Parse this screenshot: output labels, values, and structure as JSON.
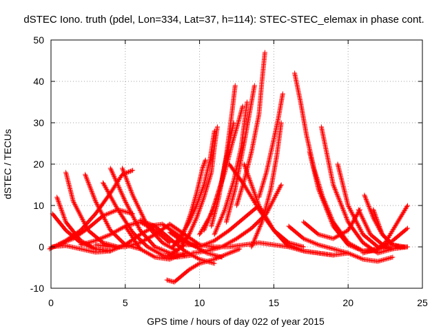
{
  "chart_data": {
    "type": "scatter",
    "title": "dSTEC Iono. truth (pdel, Lon=334, Lat=37, h=114): STEC-STEC_elemax in phase cont.",
    "xlabel": "GPS time / hours of day 022 of year 2015",
    "ylabel": "dSTEC  / TECUs",
    "xlim": [
      0,
      25
    ],
    "ylim": [
      -10,
      50
    ],
    "x_ticks": [
      0,
      5,
      10,
      15,
      20,
      25
    ],
    "y_ticks": [
      -10,
      0,
      10,
      20,
      30,
      40,
      50
    ],
    "x_tick_labels": [
      "0",
      "5",
      "10",
      "15",
      "20",
      "25"
    ],
    "y_tick_labels": [
      "-10",
      "0",
      "10",
      "20",
      "30",
      "40",
      "50"
    ],
    "grid": true,
    "legend": "none",
    "marker": "plus",
    "color": "#ff0000",
    "series": [
      {
        "x": [
          -0.1,
          1.0,
          2.0,
          3.0,
          4.0,
          4.8,
          5.5
        ],
        "y": [
          -0.5,
          1.5,
          4.0,
          8.0,
          13.0,
          17.5,
          18.5
        ]
      },
      {
        "x": [
          0.1,
          1.0,
          2.0,
          3.0,
          4.0
        ],
        "y": [
          8.0,
          4.0,
          1.0,
          -0.5,
          -1.0
        ]
      },
      {
        "x": [
          0.4,
          1.0,
          2.0,
          3.0,
          4.0
        ],
        "y": [
          12.0,
          6.0,
          1.5,
          -0.5,
          -1.0
        ]
      },
      {
        "x": [
          1.0,
          1.5,
          2.5,
          3.5,
          4.5
        ],
        "y": [
          18.0,
          11.0,
          4.0,
          1.0,
          0.0
        ]
      },
      {
        "x": [
          0.5,
          1.5,
          2.5,
          3.5,
          4.5,
          5.5
        ],
        "y": [
          0.5,
          2.0,
          4.5,
          7.5,
          9.0,
          8.0
        ]
      },
      {
        "x": [
          2.3,
          3.0,
          4.0,
          5.0,
          6.0
        ],
        "y": [
          17.5,
          11.0,
          4.0,
          0.5,
          -0.5
        ]
      },
      {
        "x": [
          0.0,
          1.0,
          2.0,
          3.0,
          4.0,
          5.0,
          6.0,
          7.0
        ],
        "y": [
          0.0,
          0.3,
          -0.5,
          -1.3,
          -1.0,
          0.5,
          3.0,
          5.0
        ]
      },
      {
        "x": [
          2.0,
          3.0,
          4.0,
          5.0,
          6.0,
          7.0,
          8.0
        ],
        "y": [
          0.5,
          1.5,
          3.0,
          5.0,
          6.0,
          4.0,
          1.0
        ]
      },
      {
        "x": [
          3.0,
          4.0,
          5.0,
          6.0,
          7.0,
          8.0,
          9.0,
          10.0
        ],
        "y": [
          0.5,
          0.0,
          0.0,
          1.0,
          3.0,
          5.5,
          3.0,
          0.5
        ]
      },
      {
        "x": [
          3.5,
          4.5,
          5.5,
          6.5,
          7.5,
          8.5,
          9.5
        ],
        "y": [
          15.5,
          9.0,
          3.5,
          0.0,
          -2.0,
          -2.5,
          -2.0
        ]
      },
      {
        "x": [
          4.0,
          5.0,
          6.0,
          7.0,
          8.0,
          9.0
        ],
        "y": [
          19.0,
          11.0,
          4.0,
          0.0,
          -1.5,
          -2.0
        ]
      },
      {
        "x": [
          4.8,
          5.5,
          6.5,
          7.5,
          8.5
        ],
        "y": [
          19.0,
          12.5,
          5.0,
          1.0,
          -1.0
        ]
      },
      {
        "x": [
          5.0,
          6.0,
          7.0,
          8.0,
          9.0
        ],
        "y": [
          5.0,
          -0.5,
          -2.5,
          -3.0,
          -1.5
        ]
      },
      {
        "x": [
          6.0,
          7.0,
          8.0,
          9.0,
          10.0,
          11.0
        ],
        "y": [
          6.5,
          5.0,
          2.0,
          -1.0,
          -3.0,
          -4.0
        ]
      },
      {
        "x": [
          6.5,
          7.5,
          8.5,
          9.5,
          10.5,
          11.5
        ],
        "y": [
          5.0,
          5.5,
          3.0,
          0.5,
          -1.5,
          -2.5
        ]
      },
      {
        "x": [
          7.8,
          8.3,
          8.8,
          9.3,
          10.0,
          11.0,
          12.0,
          12.7
        ],
        "y": [
          -8.0,
          -8.5,
          -7.0,
          -5.5,
          -4.0,
          -3.0,
          -1.5,
          -0.5
        ]
      },
      {
        "x": [
          8.0,
          9.0,
          10.0,
          11.0,
          12.0,
          13.0,
          14.0,
          15.0,
          16.0
        ],
        "y": [
          -2.0,
          0.5,
          0.5,
          0.0,
          0.0,
          0.5,
          1.0,
          0.5,
          0.0
        ]
      },
      {
        "x": [
          8.2,
          8.8,
          9.3,
          9.8,
          10.3,
          10.7,
          11.0
        ],
        "y": [
          0.0,
          3.0,
          6.0,
          10.0,
          15.0,
          21.0,
          28.0
        ]
      },
      {
        "x": [
          8.6,
          9.0,
          9.4,
          9.8,
          10.2,
          10.4
        ],
        "y": [
          1.0,
          4.0,
          8.0,
          13.0,
          19.0,
          21.0
        ]
      },
      {
        "x": [
          8.8,
          9.3,
          9.8,
          10.3,
          10.8,
          11.0,
          11.2
        ],
        "y": [
          0.5,
          3.0,
          7.0,
          12.0,
          18.0,
          24.0,
          29.0
        ]
      },
      {
        "x": [
          8.0,
          9.0,
          10.0,
          11.0,
          12.0,
          13.0,
          14.0
        ],
        "y": [
          3.5,
          1.0,
          0.0,
          1.5,
          4.0,
          7.0,
          10.0
        ]
      },
      {
        "x": [
          9.5,
          10.5,
          11.5,
          12.5,
          13.5,
          14.5,
          15.5
        ],
        "y": [
          -1.5,
          -1.0,
          0.0,
          2.0,
          4.5,
          8.0,
          15.0
        ]
      },
      {
        "x": [
          10.0,
          10.8,
          11.5,
          12.0,
          12.3
        ],
        "y": [
          3.0,
          8.0,
          16.0,
          25.0,
          30.0
        ]
      },
      {
        "x": [
          10.3,
          11.0,
          11.7,
          12.2,
          12.6,
          12.9
        ],
        "y": [
          4.0,
          10.0,
          18.0,
          25.0,
          30.0,
          34.0
        ]
      },
      {
        "x": [
          10.8,
          11.3,
          11.8,
          12.2,
          12.4
        ],
        "y": [
          5.0,
          12.0,
          22.0,
          33.0,
          39.0
        ]
      },
      {
        "x": [
          11.0,
          11.7,
          12.3,
          12.8,
          13.2
        ],
        "y": [
          3.0,
          9.0,
          16.0,
          24.0,
          35.0
        ]
      },
      {
        "x": [
          11.8,
          12.4,
          13.0,
          13.4,
          13.7
        ],
        "y": [
          6.0,
          14.0,
          25.0,
          33.0,
          39.0
        ]
      },
      {
        "x": [
          12.5,
          13.0,
          13.5,
          14.0,
          14.2,
          14.4
        ],
        "y": [
          10.0,
          16.0,
          23.0,
          32.0,
          40.0,
          47.0
        ]
      },
      {
        "x": [
          12.0,
          13.0,
          14.0,
          15.0,
          16.0,
          17.0
        ],
        "y": [
          20.0,
          15.0,
          9.0,
          4.0,
          1.0,
          0.0
        ]
      },
      {
        "x": [
          13.0,
          14.0,
          15.0,
          16.0,
          17.0,
          18.0,
          19.0
        ],
        "y": [
          20.0,
          10.0,
          4.0,
          0.5,
          -1.0,
          -1.5,
          -2.0
        ]
      },
      {
        "x": [
          14.0,
          14.5,
          15.0,
          15.3,
          15.6
        ],
        "y": [
          12.0,
          18.0,
          26.0,
          31.0,
          37.0
        ]
      },
      {
        "x": [
          13.5,
          14.2,
          14.8,
          15.2,
          15.5
        ],
        "y": [
          0.0,
          6.0,
          14.0,
          22.0,
          30.0
        ]
      },
      {
        "x": [
          15.0,
          16.0,
          17.0,
          18.0,
          19.0,
          20.0
        ],
        "y": [
          4.0,
          0.0,
          -1.0,
          -1.5,
          -2.0,
          -1.5
        ]
      },
      {
        "x": [
          16.4,
          16.8,
          17.2,
          17.7,
          18.3,
          19.0,
          20.0,
          21.0,
          22.0
        ],
        "y": [
          42.0,
          35.0,
          27.0,
          19.0,
          12.0,
          6.0,
          1.0,
          -1.0,
          -1.0
        ]
      },
      {
        "x": [
          17.4,
          18.0,
          19.0,
          20.0,
          21.0,
          22.0,
          23.0
        ],
        "y": [
          23.0,
          14.0,
          5.0,
          0.5,
          -1.0,
          -0.5,
          0.0
        ]
      },
      {
        "x": [
          18.2,
          19.0,
          20.0,
          21.0,
          22.0,
          23.0
        ],
        "y": [
          29.0,
          15.0,
          6.0,
          1.0,
          -1.5,
          -0.5
        ]
      },
      {
        "x": [
          19.3,
          20.0,
          21.0,
          22.0,
          23.0,
          24.0
        ],
        "y": [
          20.0,
          10.0,
          3.0,
          0.0,
          -0.5,
          0.0
        ]
      },
      {
        "x": [
          16.0,
          17.0,
          18.0,
          19.0,
          20.0,
          21.0,
          22.0,
          23.0
        ],
        "y": [
          5.0,
          2.0,
          0.5,
          -0.5,
          -1.5,
          -3.0,
          -3.5,
          -2.5
        ]
      },
      {
        "x": [
          17.0,
          18.0,
          19.0,
          20.0,
          20.8
        ],
        "y": [
          6.0,
          3.0,
          2.0,
          4.0,
          9.0
        ]
      },
      {
        "x": [
          20.7,
          21.5,
          22.5,
          23.5,
          24.0
        ],
        "y": [
          9.0,
          3.0,
          0.0,
          0.0,
          0.0
        ]
      },
      {
        "x": [
          21.1,
          21.7,
          22.3,
          23.0,
          23.8
        ],
        "y": [
          12.5,
          7.0,
          3.0,
          0.5,
          0.0
        ]
      },
      {
        "x": [
          21.7,
          22.3,
          23.0,
          23.5,
          24.0
        ],
        "y": [
          9.0,
          3.0,
          0.5,
          0.0,
          0.0
        ]
      },
      {
        "x": [
          21.5,
          22.0,
          22.5,
          23.0,
          23.5,
          24.0
        ],
        "y": [
          -1.0,
          -0.5,
          1.0,
          4.0,
          7.0,
          10.0
        ]
      },
      {
        "x": [
          21.0,
          22.0,
          23.0,
          24.0
        ],
        "y": [
          -1.5,
          -0.5,
          1.5,
          4.5
        ]
      }
    ]
  }
}
